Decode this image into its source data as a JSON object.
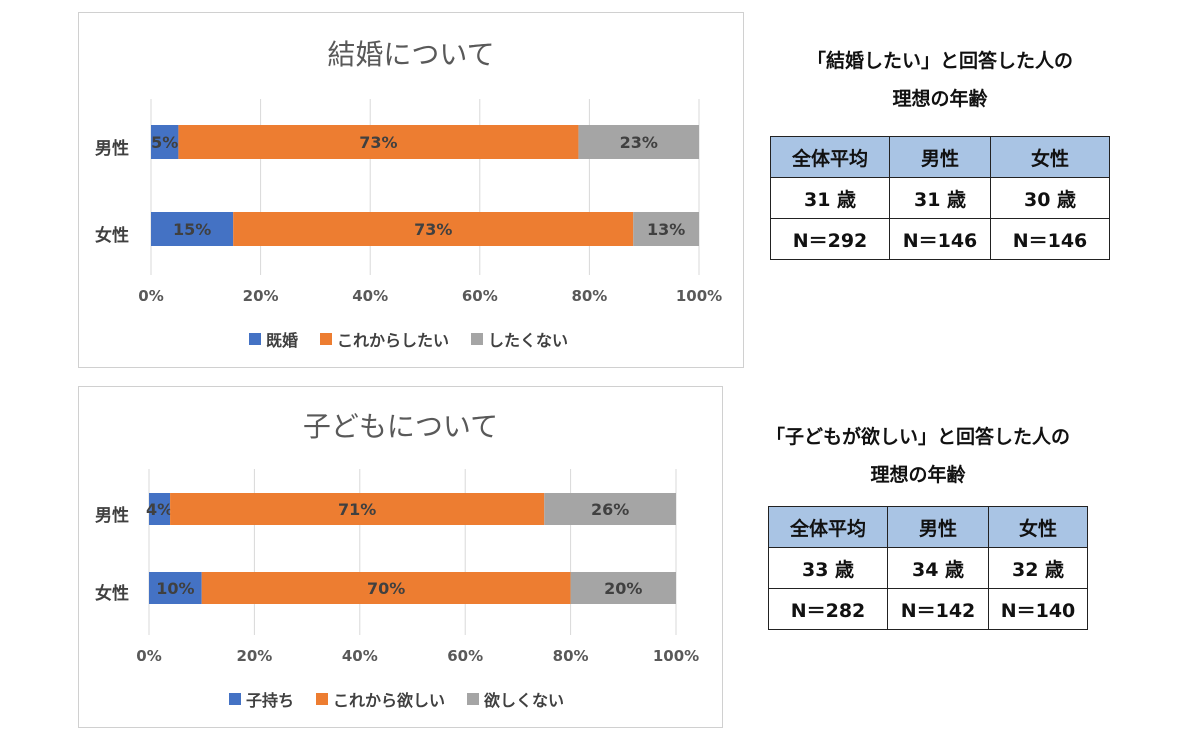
{
  "chart_data": [
    {
      "type": "bar",
      "orientation": "horizontal-stacked-100",
      "title": "結婚について",
      "categories": [
        "男性",
        "女性"
      ],
      "series": [
        {
          "name": "既婚",
          "color": "#4472c4",
          "values": [
            5,
            15
          ],
          "labels": [
            "5%",
            "15%"
          ]
        },
        {
          "name": "これからしたい",
          "color": "#ed7d31",
          "values": [
            73,
            73
          ],
          "labels": [
            "73%",
            "73%"
          ]
        },
        {
          "name": "したくない",
          "color": "#a5a5a5",
          "values": [
            23,
            13
          ],
          "labels": [
            "23%",
            "13%"
          ]
        }
      ],
      "xticks": [
        "0%",
        "20%",
        "40%",
        "60%",
        "80%",
        "100%"
      ],
      "xlim": [
        0,
        100
      ],
      "grid": true,
      "legend": "bottom"
    },
    {
      "type": "bar",
      "orientation": "horizontal-stacked-100",
      "title": "子どもについて",
      "categories": [
        "男性",
        "女性"
      ],
      "series": [
        {
          "name": "子持ち",
          "color": "#4472c4",
          "values": [
            4,
            10
          ],
          "labels": [
            "4%",
            "10%"
          ]
        },
        {
          "name": "これから欲しい",
          "color": "#ed7d31",
          "values": [
            71,
            70
          ],
          "labels": [
            "71%",
            "70%"
          ]
        },
        {
          "name": "欲しくない",
          "color": "#a5a5a5",
          "values": [
            26,
            20
          ],
          "labels": [
            "26%",
            "20%"
          ]
        }
      ],
      "xticks": [
        "0%",
        "20%",
        "40%",
        "60%",
        "80%",
        "100%"
      ],
      "xlim": [
        0,
        100
      ],
      "grid": true,
      "legend": "bottom"
    }
  ],
  "side_tables": [
    {
      "title_line1": "「結婚したい」と回答した人の",
      "title_line2": "理想の年齢",
      "headers": [
        "全体平均",
        "男性",
        "女性"
      ],
      "ages": [
        "31 歳",
        "31 歳",
        "30 歳"
      ],
      "counts": [
        "N＝292",
        "N＝146",
        "N＝146"
      ]
    },
    {
      "title_line1": "「子どもが欲しい」と回答した人の",
      "title_line2": "理想の年齢",
      "headers": [
        "全体平均",
        "男性",
        "女性"
      ],
      "ages": [
        "33 歳",
        "34 歳",
        "32 歳"
      ],
      "counts": [
        "N＝282",
        "N＝142",
        "N＝140"
      ]
    }
  ]
}
